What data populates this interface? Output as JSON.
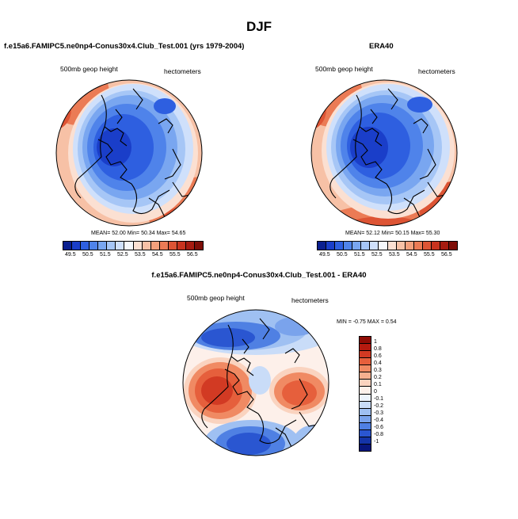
{
  "page_title": "DJF",
  "panels": [
    {
      "title": "f.e15a6.FAMIPC5.ne0np4-Conus30x4.Club_Test.001 (yrs 1979-2004)",
      "variable": "500mb geop height",
      "units": "hectometers",
      "stats": {
        "mean_label": "MEAN=",
        "mean": "52.00",
        "min_label": "Min=",
        "min": "50.34",
        "max_label": "Max=",
        "max": "54.65"
      },
      "colorbar": {
        "labels": [
          "49.5",
          "50.5",
          "51.5",
          "52.5",
          "53.5",
          "54.5",
          "55.5",
          "56.5"
        ],
        "colors": [
          "#0a1f8f",
          "#1a3ec9",
          "#2e5fe0",
          "#4f83ea",
          "#79a6f0",
          "#a6c6f6",
          "#cfe0fb",
          "#f5f8fc",
          "#fbe0d2",
          "#f7c1a6",
          "#f3a07c",
          "#eb7b55",
          "#dd5434",
          "#c8331e",
          "#a61b10",
          "#7e0d07"
        ]
      }
    },
    {
      "title": "ERA40",
      "variable": "500mb geop height",
      "units": "hectometers",
      "stats": {
        "mean_label": "MEAN=",
        "mean": "52.12",
        "min_label": "Min=",
        "min": "50.15",
        "max_label": "Max=",
        "max": "55.30"
      },
      "colorbar": {
        "labels": [
          "49.5",
          "50.5",
          "51.5",
          "52.5",
          "53.5",
          "54.5",
          "55.5",
          "56.5"
        ],
        "colors": [
          "#0a1f8f",
          "#1a3ec9",
          "#2e5fe0",
          "#4f83ea",
          "#79a6f0",
          "#a6c6f6",
          "#cfe0fb",
          "#f5f8fc",
          "#fbe0d2",
          "#f7c1a6",
          "#f3a07c",
          "#eb7b55",
          "#dd5434",
          "#c8331e",
          "#a61b10",
          "#7e0d07"
        ]
      }
    },
    {
      "title": "f.e15a6.FAMIPC5.ne0np4-Conus30x4.Club_Test.001 - ERA40",
      "variable": "500mb geop height",
      "units": "hectometers",
      "stats": {
        "min_label": "MIN =",
        "min": "-0.75",
        "max_label": "MAX =",
        "max": "0.54"
      },
      "colorbar": {
        "labels": [
          "1",
          "0.8",
          "0.6",
          "0.4",
          "0.3",
          "0.2",
          "0.1",
          "0",
          "-0.1",
          "-0.2",
          "-0.3",
          "-0.4",
          "-0.6",
          "-0.8",
          "-1"
        ],
        "colors": [
          "#8f0c05",
          "#b51a0f",
          "#d23a23",
          "#e65f3c",
          "#f08a63",
          "#f6b08f",
          "#fad3bf",
          "#fdf0ea",
          "#eef4fc",
          "#c9dcf8",
          "#9fc0f2",
          "#7aa3ec",
          "#4f80e3",
          "#2a56d1",
          "#1434a8",
          "#08167d"
        ]
      }
    }
  ]
}
